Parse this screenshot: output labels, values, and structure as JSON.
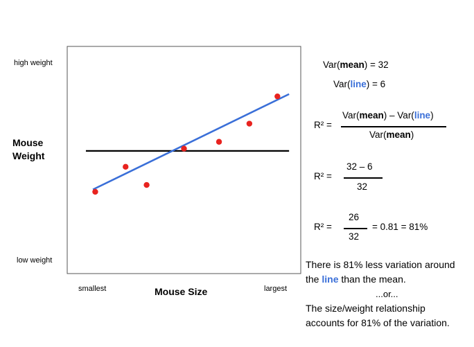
{
  "chart_data": {
    "type": "scatter",
    "xlabel": "Mouse Size",
    "ylabel": [
      "Mouse",
      "Weight"
    ],
    "x_tick_labels": [
      "smallest",
      "largest"
    ],
    "y_tick_labels": [
      "high weight",
      "low weight"
    ],
    "xlim": [
      0,
      10
    ],
    "ylim": [
      0,
      10
    ],
    "points": [
      {
        "x": 1.2,
        "y": 3.6
      },
      {
        "x": 2.5,
        "y": 4.7
      },
      {
        "x": 3.4,
        "y": 3.9
      },
      {
        "x": 5.0,
        "y": 5.5
      },
      {
        "x": 6.5,
        "y": 5.8
      },
      {
        "x": 7.8,
        "y": 6.6
      },
      {
        "x": 9.0,
        "y": 7.8
      }
    ],
    "mean_line": {
      "y": 5.4,
      "x_start": 0.8,
      "x_end": 9.5
    },
    "fit_line": {
      "x_start": 1.1,
      "y_start": 3.7,
      "x_end": 9.5,
      "y_end": 7.9
    },
    "colors": {
      "points": "#e8231f",
      "fit_line": "#3a6fd8",
      "mean_line": "#000000"
    }
  },
  "equations": {
    "var_mean": {
      "pre": "Var(",
      "word": "mean",
      "post": ") = 32"
    },
    "var_line": {
      "pre": "Var(",
      "word": "line",
      "post": ") = 6"
    },
    "r2_label": "R² =",
    "general": {
      "num_pre": "Var(",
      "num_mean": "mean",
      "num_mid": ") – Var(",
      "num_line": "line",
      "num_post": ")",
      "den_pre": "Var(",
      "den_mean": "mean",
      "den_post": ")"
    },
    "numeric": {
      "num": "32 – 6",
      "den": "32"
    },
    "result": {
      "num": "26",
      "den": "32",
      "tail": "= 0.81 = 81%"
    }
  },
  "explanation": {
    "line1": "There is 81% less variation around",
    "line2_pre": "the ",
    "line2_word": "line",
    "line2_post": " than the mean.",
    "or": "...or...",
    "line3": "The size/weight relationship",
    "line4": "accounts for 81% of the variation."
  }
}
